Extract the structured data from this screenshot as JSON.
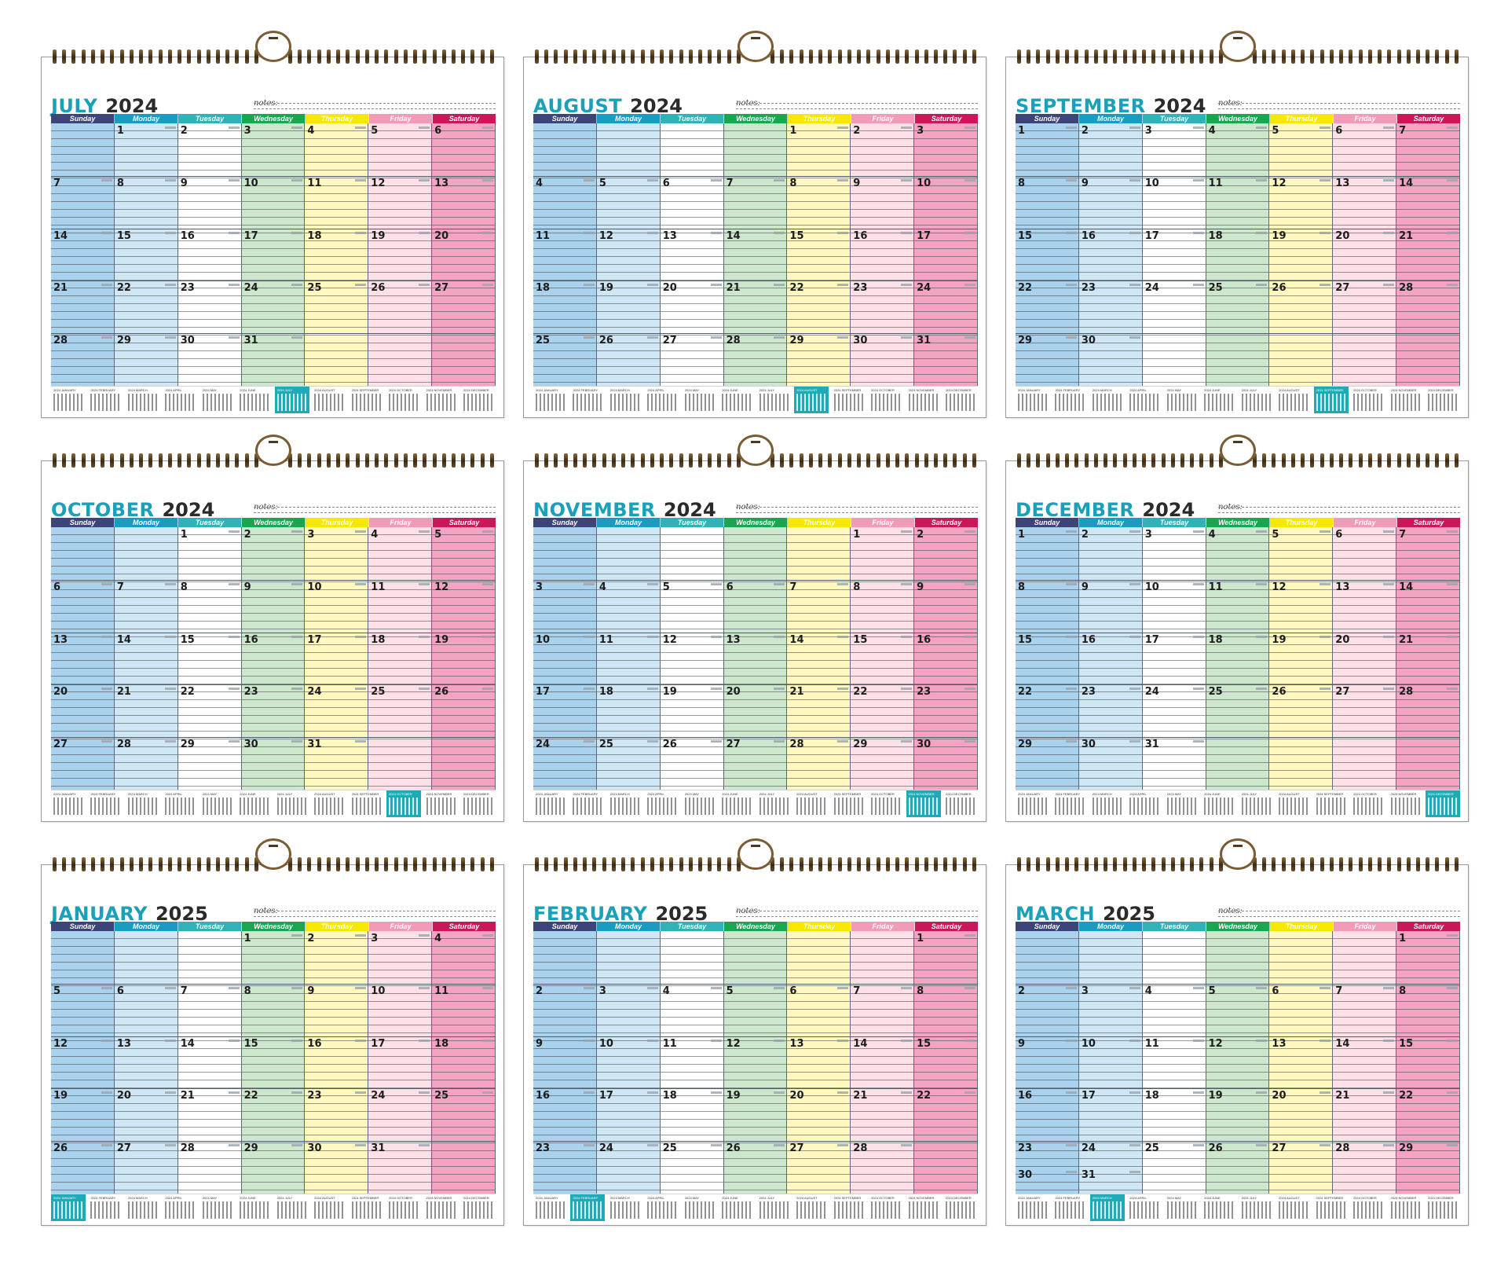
{
  "notes_label": "notes:",
  "weekdays": [
    "Sunday",
    "Monday",
    "Tuesday",
    "Wednesday",
    "Thursday",
    "Friday",
    "Saturday"
  ],
  "colors": {
    "head": [
      "#3d4478",
      "#1a9cc2",
      "#2fb2b8",
      "#18a651",
      "#f6e800",
      "#f39ab8",
      "#c8185a"
    ],
    "col": [
      "#a9d2ee",
      "#cfe6f5",
      "#ffffff",
      "#cde7cd",
      "#fff8bf",
      "#fde0e8",
      "#f4a4c2"
    ],
    "accent": "#1aa0b8",
    "active_mini": "#1faab8"
  },
  "mini_months": [
    "2024 JANUARY",
    "2024 FEBRUARY",
    "2024 MARCH",
    "2024 APRIL",
    "2024 MAY",
    "2024 JUNE",
    "2024 JULY",
    "2024 AUGUST",
    "2024 SEPTEMBER",
    "2024 OCTOBER",
    "2024 NOVEMBER",
    "2024 DECEMBER"
  ],
  "months": [
    {
      "name": "JULY",
      "year": "2024",
      "first_dow": 1,
      "days": 31,
      "active_index": 6
    },
    {
      "name": "AUGUST",
      "year": "2024",
      "first_dow": 4,
      "days": 31,
      "active_index": 7
    },
    {
      "name": "SEPTEMBER",
      "year": "2024",
      "first_dow": 0,
      "days": 30,
      "active_index": 8
    },
    {
      "name": "OCTOBER",
      "year": "2024",
      "first_dow": 2,
      "days": 31,
      "active_index": 9
    },
    {
      "name": "NOVEMBER",
      "year": "2024",
      "first_dow": 5,
      "days": 30,
      "active_index": 10
    },
    {
      "name": "DECEMBER",
      "year": "2024",
      "first_dow": 0,
      "days": 31,
      "active_index": 11
    },
    {
      "name": "JANUARY",
      "year": "2025",
      "first_dow": 3,
      "days": 31,
      "active_index": 0
    },
    {
      "name": "FEBRUARY",
      "year": "2025",
      "first_dow": 6,
      "days": 28,
      "active_index": 1
    },
    {
      "name": "MARCH",
      "year": "2025",
      "first_dow": 6,
      "days": 31,
      "active_index": 2
    }
  ]
}
